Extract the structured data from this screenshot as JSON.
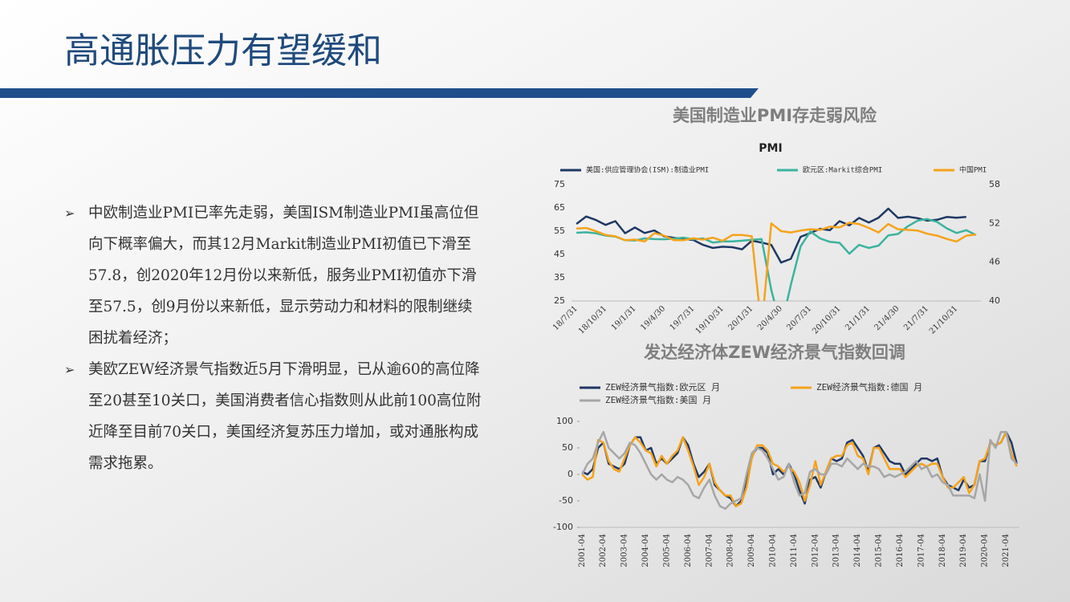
{
  "title": "高通胀压力有望缓和",
  "bullets": [
    "中欧制造业PMI已率先走弱，美国ISM制造业PMI虽高位但向下概率偏大，而其12月Markit制造业PMI初值已下滑至57.8，创2020年12月份以来新低，服务业PMI初值亦下滑至57.5，创9月份以来新低，显示劳动力和材料的限制继续困扰着经济；",
    "美欧ZEW经济景气指数近5月下滑明显，已从逾60的高位降至20甚至10关口，美国消费者信心指数则从此前100高位附近降至目前70关口，美国经济复苏压力增加，或对通胀构成需求拖累。"
  ],
  "chart_data": [
    {
      "type": "line",
      "title": "美国制造业PMI存走弱风险",
      "subtitle": "PMI",
      "categories": [
        "18/7/31",
        null,
        null,
        "18/10/31",
        null,
        null,
        "19/1/31",
        null,
        null,
        "19/4/30",
        null,
        null,
        "19/7/31",
        null,
        null,
        "19/10/31",
        null,
        null,
        "20/1/31",
        null,
        null,
        "20/4/30",
        null,
        null,
        "20/7/31",
        null,
        null,
        "20/10/31",
        null,
        null,
        "21/1/31",
        null,
        null,
        "21/4/30",
        null,
        null,
        "21/7/31",
        null,
        null,
        "21/10/31",
        null,
        null
      ],
      "ylim": [
        25,
        75
      ],
      "yticks": [
        25,
        35,
        45,
        55,
        65,
        75
      ],
      "y2lim": [
        40,
        58
      ],
      "y2ticks": [
        40,
        46,
        52,
        58
      ],
      "series": [
        {
          "name": "美国:供应管理协会(ISM):制造业PMI",
          "color": "#1f3864",
          "values": [
            58.1,
            61.3,
            59.8,
            57.7,
            59.3,
            54.1,
            56.6,
            54.2,
            55.3,
            52.8,
            52.1,
            51.7,
            51.2,
            49.1,
            47.8,
            48.3,
            48.1,
            47.2,
            50.9,
            50.1,
            49.1,
            41.5,
            43.1,
            52.6,
            54.2,
            56.0,
            55.4,
            59.3,
            57.5,
            60.7,
            58.7,
            60.8,
            64.7,
            60.7,
            61.2,
            60.6,
            59.5,
            59.9,
            61.1,
            60.8,
            61.1,
            null
          ]
        },
        {
          "name": "欧元区:Markit综合PMI",
          "color": "#3cb39e",
          "values": [
            54.3,
            54.5,
            54.1,
            53.1,
            52.7,
            51.1,
            51.0,
            51.9,
            51.6,
            51.5,
            51.8,
            52.2,
            51.5,
            51.9,
            50.1,
            50.6,
            50.6,
            50.9,
            51.3,
            51.6,
            29.7,
            13.6,
            31.9,
            48.5,
            54.9,
            51.9,
            50.4,
            50.0,
            45.3,
            49.1,
            47.8,
            48.8,
            53.2,
            53.8,
            57.1,
            59.5,
            60.2,
            59.0,
            56.2,
            54.2,
            55.4,
            53.3
          ]
        },
        {
          "name": "中国PMI",
          "color": "#f5a31a",
          "axis": "y2",
          "values": [
            51.2,
            51.3,
            50.8,
            50.2,
            50.0,
            49.4,
            49.5,
            49.2,
            50.5,
            50.1,
            49.4,
            49.4,
            49.7,
            49.5,
            49.8,
            49.3,
            50.2,
            50.2,
            50.0,
            35.7,
            52.0,
            50.8,
            50.6,
            50.9,
            51.1,
            51.0,
            51.5,
            51.4,
            52.1,
            51.9,
            51.3,
            50.6,
            51.9,
            51.1,
            51.0,
            50.9,
            50.4,
            50.1,
            49.6,
            49.2,
            50.1,
            50.3
          ]
        }
      ]
    },
    {
      "type": "line",
      "title": "发达经济体ZEW经济景气指数回调",
      "categories": [
        "2001-04",
        null,
        null,
        null,
        "2002-04",
        null,
        null,
        null,
        "2003-04",
        null,
        null,
        null,
        "2004-04",
        null,
        null,
        null,
        "2005-04",
        null,
        null,
        null,
        "2006-04",
        null,
        null,
        null,
        "2007-04",
        null,
        null,
        null,
        "2008-04",
        null,
        null,
        null,
        "2009-04",
        null,
        null,
        null,
        "2010-04",
        null,
        null,
        null,
        "2011-04",
        null,
        null,
        null,
        "2012-04",
        null,
        null,
        null,
        "2013-04",
        null,
        null,
        null,
        "2014-04",
        null,
        null,
        null,
        "2015-04",
        null,
        null,
        null,
        "2016-04",
        null,
        null,
        null,
        "2017-04",
        null,
        null,
        null,
        "2018-04",
        null,
        null,
        null,
        "2019-04",
        null,
        null,
        null,
        "2020-04",
        null,
        null,
        null,
        "2021-04",
        null,
        null
      ],
      "ylim": [
        -100,
        100
      ],
      "yticks": [
        -100,
        -50,
        0,
        50,
        100
      ],
      "series": [
        {
          "name": "ZEW经济景气指数:欧元区 月",
          "color": "#1f3864",
          "values": [
            5,
            0,
            10,
            50,
            60,
            20,
            15,
            10,
            20,
            55,
            70,
            70,
            45,
            50,
            20,
            30,
            20,
            30,
            40,
            70,
            55,
            20,
            -5,
            5,
            20,
            -20,
            -30,
            -40,
            -45,
            -60,
            -50,
            -15,
            35,
            50,
            50,
            40,
            0,
            10,
            0,
            20,
            0,
            -30,
            -55,
            -10,
            -5,
            -25,
            5,
            30,
            25,
            30,
            60,
            65,
            50,
            35,
            5,
            50,
            55,
            40,
            25,
            20,
            20,
            0,
            10,
            20,
            30,
            30,
            25,
            30,
            -5,
            -20,
            -25,
            -30,
            -10,
            -25,
            -20,
            25,
            25,
            60,
            55,
            60,
            80,
            60,
            20
          ]
        },
        {
          "name": "ZEW经济景气指数:德国 月",
          "color": "#f5a31a",
          "values": [
            0,
            -10,
            -5,
            65,
            60,
            25,
            10,
            5,
            30,
            55,
            70,
            60,
            45,
            40,
            15,
            35,
            20,
            35,
            45,
            70,
            45,
            15,
            -20,
            -5,
            20,
            -15,
            -30,
            -40,
            -40,
            -60,
            -55,
            -25,
            30,
            55,
            55,
            45,
            20,
            15,
            5,
            15,
            5,
            -15,
            -50,
            -20,
            25,
            -20,
            5,
            30,
            35,
            35,
            55,
            60,
            35,
            30,
            0,
            50,
            50,
            30,
            10,
            10,
            10,
            -5,
            5,
            15,
            20,
            15,
            20,
            20,
            -5,
            -25,
            -25,
            -15,
            -5,
            -35,
            -20,
            25,
            30,
            60,
            55,
            60,
            80,
            40,
            15
          ]
        },
        {
          "name": "ZEW经济景气指数:美国 月",
          "color": "#a6a6a6",
          "values": [
            0,
            20,
            30,
            60,
            80,
            50,
            40,
            30,
            40,
            60,
            55,
            40,
            20,
            0,
            -10,
            0,
            -10,
            -15,
            -5,
            -10,
            -20,
            -40,
            -45,
            -25,
            -10,
            -40,
            -60,
            -65,
            -55,
            -50,
            -45,
            0,
            40,
            50,
            45,
            30,
            10,
            -10,
            -5,
            20,
            -15,
            -40,
            -35,
            5,
            10,
            0,
            0,
            20,
            20,
            15,
            30,
            20,
            10,
            20,
            15,
            15,
            10,
            -5,
            0,
            -5,
            0,
            5,
            15,
            25,
            10,
            15,
            -5,
            0,
            -15,
            -20,
            -40,
            -40,
            -40,
            -40,
            -45,
            0,
            -50,
            65,
            50,
            80,
            80,
            30,
            20
          ]
        }
      ]
    }
  ]
}
